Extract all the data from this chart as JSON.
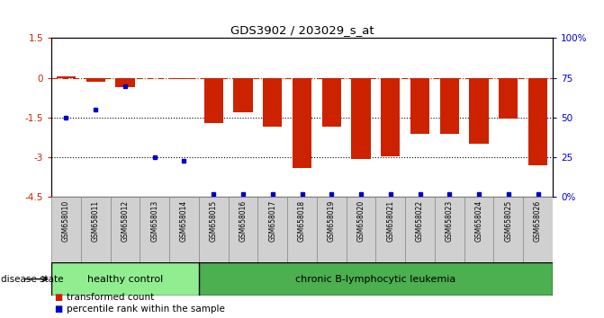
{
  "title": "GDS3902 / 203029_s_at",
  "samples": [
    "GSM658010",
    "GSM658011",
    "GSM658012",
    "GSM658013",
    "GSM658014",
    "GSM658015",
    "GSM658016",
    "GSM658017",
    "GSM658018",
    "GSM658019",
    "GSM658020",
    "GSM658021",
    "GSM658022",
    "GSM658023",
    "GSM658024",
    "GSM658025",
    "GSM658026"
  ],
  "bar_values": [
    0.05,
    -0.15,
    -0.35,
    0.0,
    -0.05,
    -1.7,
    -1.3,
    -1.85,
    -3.4,
    -1.85,
    -3.05,
    -2.95,
    -2.1,
    -2.1,
    -2.5,
    -1.55,
    -3.3
  ],
  "percentile_raw": [
    50,
    55,
    70,
    25,
    23,
    2,
    2,
    2,
    2,
    2,
    2,
    2,
    2,
    2,
    2,
    2,
    2
  ],
  "bar_color": "#cc2200",
  "percentile_color": "#0000cc",
  "ylim": [
    -4.5,
    1.5
  ],
  "right_ylim": [
    0,
    100
  ],
  "right_yticks": [
    0,
    25,
    50,
    75,
    100
  ],
  "right_yticklabels": [
    "0%",
    "25",
    "50",
    "75",
    "100%"
  ],
  "left_yticks": [
    -4.5,
    -3.0,
    -1.5,
    0.0,
    1.5
  ],
  "left_yticklabels": [
    "-4.5",
    "-3",
    "-1.5",
    "0",
    "1.5"
  ],
  "hline_y": 0.0,
  "dotted_lines": [
    -1.5,
    -3.0
  ],
  "group1_label": "healthy control",
  "group1_count": 5,
  "group2_label": "chronic B-lymphocytic leukemia",
  "group2_count": 12,
  "disease_state_label": "disease state",
  "legend_items": [
    {
      "color": "#cc2200",
      "label": "transformed count"
    },
    {
      "color": "#0000cc",
      "label": "percentile rank within the sample"
    }
  ],
  "bar_width": 0.65,
  "background_color": "#ffffff",
  "plot_bg_color": "#ffffff",
  "group1_color": "#90ee90",
  "group2_color": "#4caf50",
  "label_bg_color": "#d0d0d0",
  "label_border_color": "#888888"
}
